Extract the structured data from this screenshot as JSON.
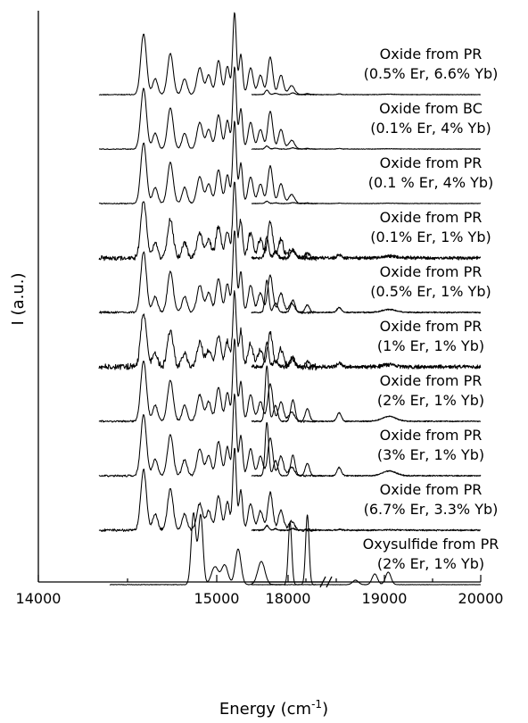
{
  "chart_data": {
    "type": "line",
    "title": "",
    "xlabel": "Energy (cm",
    "xlabel_sup": "-1",
    "xlabel_close": ")",
    "ylabel": "I (a.u.)",
    "x_axis_break": [
      15600,
      17600
    ],
    "xlim": [
      14000,
      20000
    ],
    "x_ticks": [
      14000,
      15000,
      18000,
      19000,
      20000
    ],
    "x_tick_labels": [
      "14000",
      "15000",
      "18000",
      "19000",
      "20000"
    ],
    "grid": false,
    "legend": "none",
    "curves": [
      {
        "label_line1": "Oxide from PR",
        "label_line2": "(0.5% Er,  6.6% Yb)",
        "peak_scale": 1.0,
        "noise": 0.4,
        "er_scale": 0.12,
        "x_start": 14340
      },
      {
        "label_line1": "Oxide from BC",
        "label_line2": "(0.1% Er,  4% Yb)",
        "peak_scale": 1.0,
        "noise": 0.4,
        "er_scale": 0.08,
        "x_start": 14340
      },
      {
        "label_line1": "Oxide from PR",
        "label_line2": "(0.1 % Er,  4% Yb)",
        "peak_scale": 1.0,
        "noise": 0.4,
        "er_scale": 0.06,
        "x_start": 14340
      },
      {
        "label_line1": "Oxide from PR",
        "label_line2": "(0.1% Er,  1% Yb)",
        "peak_scale": 0.95,
        "noise": 2.2,
        "er_scale": 0.55,
        "x_start": 14340
      },
      {
        "label_line1": "Oxide from PR",
        "label_line2": "(0.5% Er,  1% Yb)",
        "peak_scale": 1.0,
        "noise": 0.9,
        "er_scale": 0.85,
        "x_start": 14340
      },
      {
        "label_line1": "Oxide from PR",
        "label_line2": "(1% Er,  1% Yb)",
        "peak_scale": 0.9,
        "noise": 2.5,
        "er_scale": 0.65,
        "x_start": 14340
      },
      {
        "label_line1": "Oxide from PR",
        "label_line2": "(2% Er,  1% Yb)",
        "peak_scale": 1.0,
        "noise": 0.8,
        "er_scale": 1.45,
        "x_start": 14340
      },
      {
        "label_line1": "Oxide from PR",
        "label_line2": "(3% Er,  1% Yb)",
        "peak_scale": 1.0,
        "noise": 0.8,
        "er_scale": 1.4,
        "x_start": 14340
      },
      {
        "label_line1": "Oxide from PR",
        "label_line2": "(6.7% Er,  3.3% Yb)",
        "peak_scale": 1.0,
        "noise": 1.0,
        "er_scale": 0.12,
        "x_start": 14340
      },
      {
        "label_line1": "Oxysulfide from PR",
        "label_line2": "(2% Er,  1% Yb)",
        "peak_scale": 1.0,
        "noise": 0.25,
        "er_scale": 1.0,
        "x_start": 14400,
        "kind": "oxysulfide"
      }
    ]
  }
}
